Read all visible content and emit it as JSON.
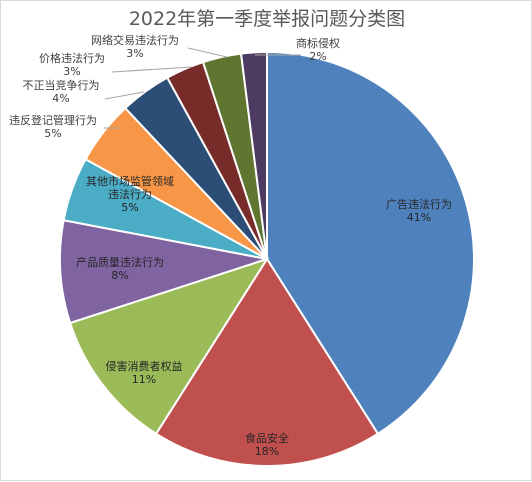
{
  "chart_data": {
    "type": "pie",
    "title": "2022年第一季度举报问题分类图",
    "slices": [
      {
        "label": "广告违法行为",
        "value": 41,
        "display": "41%",
        "color": "#4f81bd"
      },
      {
        "label": "食品安全",
        "value": 18,
        "display": "18%",
        "color": "#c0504d"
      },
      {
        "label": "侵害消费者权益",
        "value": 11,
        "display": "11%",
        "color": "#9bbb59"
      },
      {
        "label": "产品质量违法行为",
        "value": 8,
        "display": "8%",
        "color": "#8064a2"
      },
      {
        "label": "其他市场监管领域违法行为",
        "value": 5,
        "display": "5%",
        "color": "#4bacc6"
      },
      {
        "label": "违反登记管理行为",
        "value": 5,
        "display": "5%",
        "color": "#f79646"
      },
      {
        "label": "不正当竞争行为",
        "value": 4,
        "display": "4%",
        "color": "#2c4d75"
      },
      {
        "label": "价格违法行为",
        "value": 3,
        "display": "3%",
        "color": "#772c2a"
      },
      {
        "label": "网络交易违法行为",
        "value": 3,
        "display": "3%",
        "color": "#5f7530"
      },
      {
        "label": "商标侵权",
        "value": 2,
        "display": "2%",
        "color": "#4d3b62"
      }
    ],
    "legend": "none"
  }
}
